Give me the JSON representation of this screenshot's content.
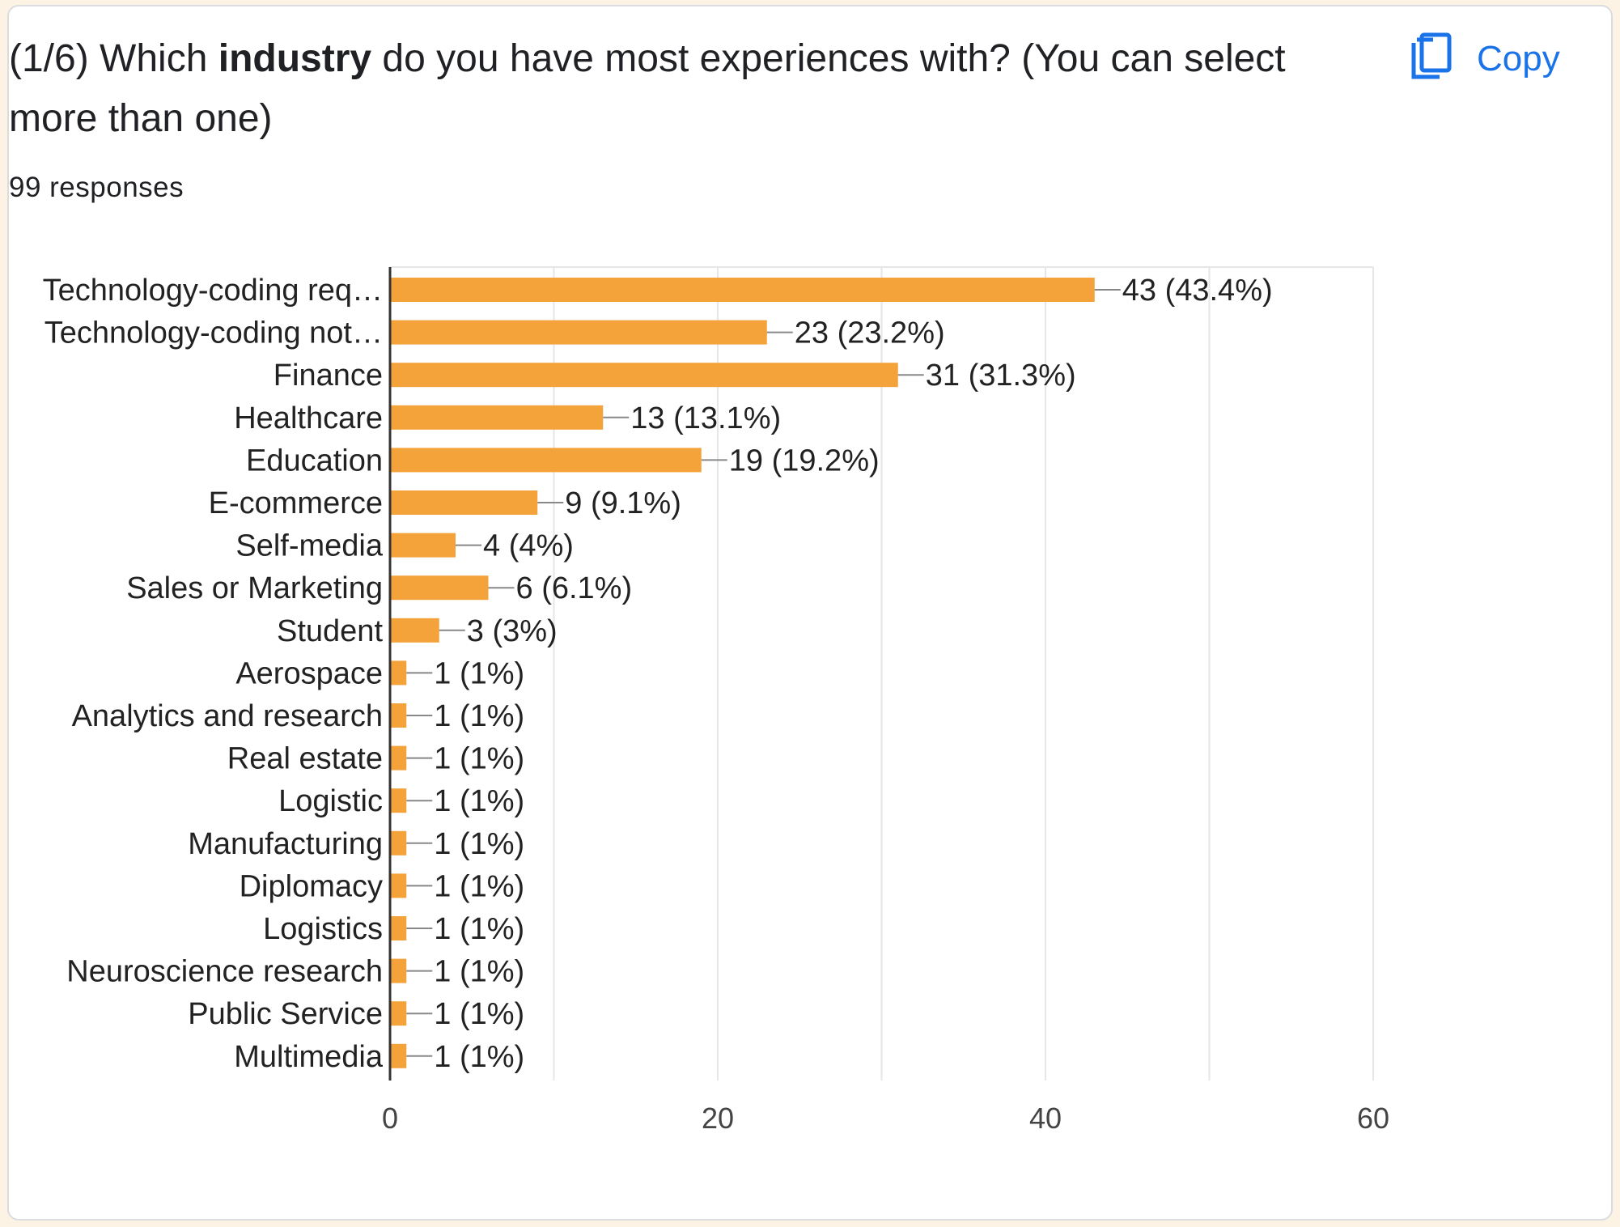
{
  "question": {
    "title_prefix": "(1/6) Which ",
    "title_bold": "industry",
    "title_suffix": " do you have most experiences with? (You can select more than one)",
    "responses": "99 responses"
  },
  "copy_button": {
    "label": "Copy",
    "icon": "copy-icon"
  },
  "colors": {
    "bar": "#f4a23a",
    "accent": "#1a73e8",
    "grid": "#e6e6e6",
    "axis": "#333333"
  },
  "chart_data": {
    "type": "bar",
    "orientation": "horizontal",
    "categories": [
      "Technology-coding req…",
      "Technology-coding not…",
      "Finance",
      "Healthcare",
      "Education",
      "E-commerce",
      "Self-media",
      "Sales or Marketing",
      "Student",
      "Aerospace",
      "Analytics and research",
      "Real estate",
      "Logistic",
      "Manufacturing",
      "Diplomacy",
      "Logistics",
      "Neuroscience research",
      "Public Service",
      "Multimedia"
    ],
    "values": [
      43,
      23,
      31,
      13,
      19,
      9,
      4,
      6,
      3,
      1,
      1,
      1,
      1,
      1,
      1,
      1,
      1,
      1,
      1
    ],
    "data_labels": [
      "43 (43.4%)",
      "23 (23.2%)",
      "31 (31.3%)",
      "13 (13.1%)",
      "19 (19.2%)",
      "9 (9.1%)",
      "4 (4%)",
      "6 (6.1%)",
      "3 (3%)",
      "1 (1%)",
      "1 (1%)",
      "1 (1%)",
      "1 (1%)",
      "1 (1%)",
      "1 (1%)",
      "1 (1%)",
      "1 (1%)",
      "1 (1%)",
      "1 (1%)"
    ],
    "xlim": [
      0,
      60
    ],
    "xticks": [
      "0",
      "20",
      "40",
      "60"
    ],
    "xtick_values": [
      0,
      20,
      40,
      60
    ],
    "grid": true,
    "title": "",
    "xlabel": "",
    "ylabel": ""
  }
}
